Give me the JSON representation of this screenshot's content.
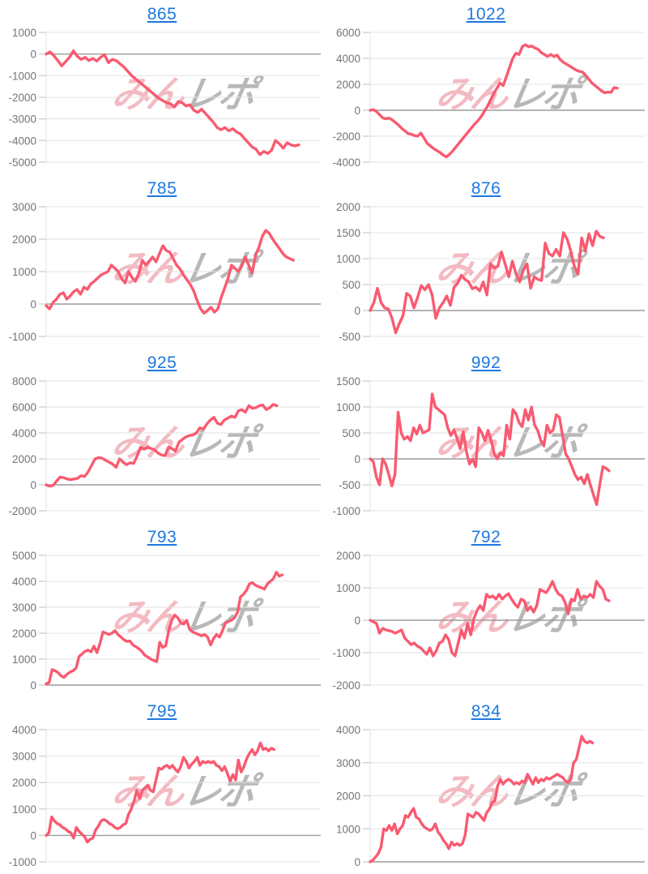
{
  "page": {
    "title": ""
  },
  "watermark": {
    "pink_text": "みん",
    "gray_text": "レポ"
  },
  "colors": {
    "line": "#f95a70",
    "grid": "#e3e3e3",
    "zero_line": "#9b9b9b",
    "tick": "#cfcfcf",
    "axis_label": "#757575",
    "link": "#1e78e0"
  },
  "chart_data": [
    {
      "type": "line",
      "title": "865",
      "ylim": [
        -5000,
        1000
      ],
      "ytick_values": [
        1000,
        0,
        -1000,
        -2000,
        -3000,
        -4000,
        -5000
      ],
      "ytick_labels": [
        "1000",
        "0",
        "-1000",
        "-2000",
        "-3000",
        "-4000",
        "-5000"
      ],
      "end_frac": 0.92,
      "values": [
        0,
        100,
        -80,
        -300,
        -550,
        -350,
        -150,
        150,
        -100,
        -250,
        -150,
        -300,
        -200,
        -320,
        -150,
        -30,
        -400,
        -250,
        -300,
        -450,
        -600,
        -800,
        -1000,
        -1150,
        -1300,
        -1450,
        -1600,
        -1750,
        -1900,
        -2050,
        -2150,
        -2250,
        -2300,
        -2450,
        -2200,
        -2250,
        -2400,
        -2350,
        -2600,
        -2700,
        -2550,
        -2750,
        -2950,
        -3150,
        -3400,
        -3500,
        -3400,
        -3550,
        -3450,
        -3600,
        -3700,
        -3900,
        -4100,
        -4300,
        -4400,
        -4650,
        -4500,
        -4600,
        -4450,
        -4000,
        -4150,
        -4350,
        -4100,
        -4200,
        -4250,
        -4200
      ]
    },
    {
      "type": "line",
      "title": "1022",
      "ylim": [
        -4000,
        6000
      ],
      "ytick_values": [
        6000,
        4000,
        2000,
        0,
        -2000,
        -4000
      ],
      "ytick_labels": [
        "6000",
        "4000",
        "2000",
        "0",
        "-2000",
        "-4000"
      ],
      "end_frac": 0.9,
      "values": [
        0,
        50,
        -100,
        -350,
        -600,
        -650,
        -600,
        -750,
        -950,
        -1150,
        -1400,
        -1600,
        -1800,
        -1850,
        -1950,
        -2000,
        -1750,
        -2150,
        -2550,
        -2750,
        -2950,
        -3100,
        -3250,
        -3450,
        -3600,
        -3400,
        -3150,
        -2850,
        -2550,
        -2250,
        -1950,
        -1650,
        -1350,
        -1050,
        -800,
        -500,
        -100,
        300,
        800,
        1300,
        1700,
        2100,
        1900,
        2600,
        3300,
        4000,
        4400,
        4300,
        4900,
        5050,
        4900,
        4950,
        4800,
        4700,
        4450,
        4300,
        4150,
        4300,
        4150,
        4250,
        3900,
        3700,
        3550,
        3400,
        3250,
        3100,
        3000,
        2950,
        2700,
        2400,
        2100,
        1900,
        1700,
        1500,
        1350,
        1400,
        1380,
        1750,
        1700
      ]
    },
    {
      "type": "line",
      "title": "785",
      "ylim": [
        -1000,
        3000
      ],
      "ytick_values": [
        3000,
        2000,
        1000,
        0,
        -1000
      ],
      "ytick_labels": [
        "3000",
        "2000",
        "1000",
        "0",
        "-1000"
      ],
      "end_frac": 0.9,
      "values": [
        -50,
        -150,
        50,
        150,
        300,
        350,
        150,
        250,
        380,
        450,
        300,
        520,
        450,
        620,
        700,
        800,
        900,
        950,
        1000,
        1200,
        1100,
        1000,
        780,
        650,
        1000,
        820,
        700,
        950,
        1350,
        1200,
        1320,
        1450,
        1300,
        1550,
        1800,
        1650,
        1600,
        1400,
        1200,
        1080,
        900,
        750,
        600,
        400,
        100,
        -150,
        -280,
        -200,
        -100,
        -250,
        -150,
        200,
        500,
        800,
        1200,
        1100,
        1000,
        1200,
        1450,
        1200,
        950,
        1500,
        1750,
        2100,
        2270,
        2180,
        2000,
        1850,
        1700,
        1550,
        1450,
        1400,
        1350
      ]
    },
    {
      "type": "line",
      "title": "876",
      "ylim": [
        -500,
        2000
      ],
      "ytick_values": [
        2000,
        1500,
        1000,
        500,
        0,
        -500
      ],
      "ytick_labels": [
        "2000",
        "1500",
        "1000",
        "500",
        "0",
        "-500"
      ],
      "end_frac": 0.85,
      "values": [
        0,
        150,
        430,
        150,
        50,
        30,
        -150,
        -430,
        -250,
        -100,
        330,
        280,
        50,
        250,
        480,
        400,
        500,
        300,
        -150,
        50,
        150,
        280,
        100,
        450,
        530,
        680,
        600,
        550,
        420,
        450,
        380,
        550,
        300,
        900,
        820,
        850,
        1130,
        900,
        650,
        950,
        700,
        550,
        780,
        900,
        430,
        650,
        600,
        580,
        1300,
        1100,
        1050,
        1180,
        1050,
        1500,
        1380,
        1150,
        850,
        700,
        1400,
        1150,
        1480,
        1250,
        1530,
        1430,
        1400
      ]
    },
    {
      "type": "line",
      "title": "925",
      "ylim": [
        -2000,
        8000
      ],
      "ytick_values": [
        8000,
        6000,
        4000,
        2000,
        0,
        -2000
      ],
      "ytick_labels": [
        "8000",
        "6000",
        "4000",
        "2000",
        "0",
        "-2000"
      ],
      "end_frac": 0.84,
      "values": [
        0,
        -100,
        -50,
        300,
        600,
        550,
        450,
        400,
        450,
        500,
        700,
        650,
        1000,
        1500,
        2000,
        2100,
        2050,
        1900,
        1750,
        1600,
        1350,
        2000,
        1750,
        1550,
        1700,
        1650,
        2200,
        2900,
        2750,
        2900,
        2800,
        2700,
        2450,
        2300,
        2250,
        2900,
        2800,
        2600,
        3300,
        3500,
        3700,
        3800,
        3850,
        4000,
        4400,
        4300,
        4700,
        5000,
        5200,
        4750,
        4650,
        5000,
        5150,
        5300,
        5200,
        5700,
        5800,
        5600,
        6100,
        5900,
        5950,
        6100,
        6150,
        5800,
        5950,
        6200,
        6100
      ]
    },
    {
      "type": "line",
      "title": "992",
      "ylim": [
        -1000,
        1500
      ],
      "ytick_values": [
        1500,
        1000,
        500,
        0,
        -500,
        -1000
      ],
      "ytick_labels": [
        "1500",
        "1000",
        "500",
        "0",
        "-500",
        "-1000"
      ],
      "end_frac": 0.87,
      "values": [
        0,
        -50,
        -350,
        -500,
        0,
        -100,
        -300,
        -520,
        -300,
        900,
        500,
        380,
        430,
        350,
        600,
        480,
        650,
        500,
        530,
        560,
        1250,
        1000,
        950,
        900,
        850,
        600,
        450,
        560,
        400,
        200,
        520,
        150,
        -100,
        0,
        -150,
        600,
        500,
        350,
        550,
        350,
        100,
        0,
        120,
        60,
        650,
        380,
        950,
        870,
        700,
        620,
        950,
        750,
        1000,
        650,
        550,
        350,
        250,
        650,
        500,
        560,
        850,
        800,
        450,
        100,
        0,
        -150,
        -300,
        -400,
        -350,
        -480,
        -300,
        -500,
        -700,
        -880,
        -500,
        -150,
        -180,
        -230
      ]
    },
    {
      "type": "line",
      "title": "793",
      "ylim": [
        0,
        5000
      ],
      "ytick_values": [
        5000,
        4000,
        3000,
        2000,
        1000,
        0
      ],
      "ytick_labels": [
        "5000",
        "4000",
        "3000",
        "2000",
        "1000",
        "0"
      ],
      "end_frac": 0.86,
      "values": [
        50,
        100,
        600,
        550,
        480,
        350,
        300,
        420,
        500,
        560,
        650,
        1100,
        1200,
        1300,
        1350,
        1280,
        1500,
        1250,
        1600,
        2050,
        2000,
        1950,
        2000,
        2100,
        1950,
        1850,
        1750,
        1680,
        1700,
        1550,
        1480,
        1400,
        1300,
        1150,
        1080,
        1000,
        950,
        900,
        1650,
        1450,
        1520,
        2100,
        2500,
        2700,
        2600,
        2400,
        2350,
        2500,
        2150,
        2050,
        2000,
        1950,
        1900,
        1950,
        1850,
        1550,
        1800,
        1950,
        1850,
        2100,
        2400,
        2450,
        2500,
        2600,
        2800,
        3400,
        3500,
        3650,
        3900,
        3950,
        3850,
        3800,
        3750,
        3700,
        3900,
        4000,
        4100,
        4350,
        4200,
        4250
      ]
    },
    {
      "type": "line",
      "title": "792",
      "ylim": [
        -2000,
        2000
      ],
      "ytick_values": [
        2000,
        1000,
        0,
        -1000,
        -2000
      ],
      "ytick_labels": [
        "2000",
        "1000",
        "0",
        "-1000",
        "-2000"
      ],
      "end_frac": 0.87,
      "values": [
        0,
        -50,
        -100,
        -400,
        -250,
        -300,
        -320,
        -350,
        -400,
        -350,
        -300,
        -550,
        -650,
        -750,
        -700,
        -800,
        -850,
        -950,
        -1050,
        -850,
        -1100,
        -950,
        -700,
        -650,
        -450,
        -600,
        -1000,
        -1100,
        -700,
        -300,
        -550,
        -100,
        -450,
        50,
        300,
        450,
        300,
        800,
        700,
        750,
        650,
        800,
        650,
        750,
        820,
        650,
        500,
        400,
        650,
        600,
        300,
        420,
        250,
        450,
        950,
        900,
        850,
        1000,
        1200,
        950,
        800,
        750,
        550,
        200,
        650,
        600,
        950,
        650,
        750,
        700,
        800,
        700,
        1200,
        1050,
        950,
        650,
        600
      ]
    },
    {
      "type": "line",
      "title": "795",
      "ylim": [
        -1000,
        4000
      ],
      "ytick_values": [
        4000,
        3000,
        2000,
        1000,
        0,
        -1000
      ],
      "ytick_labels": [
        "4000",
        "3000",
        "2000",
        "1000",
        "0",
        "-1000"
      ],
      "end_frac": 0.83,
      "values": [
        0,
        100,
        700,
        550,
        450,
        400,
        300,
        250,
        150,
        100,
        -100,
        300,
        150,
        50,
        -50,
        -250,
        -150,
        -100,
        200,
        350,
        550,
        600,
        550,
        450,
        400,
        300,
        250,
        300,
        400,
        450,
        800,
        1000,
        1300,
        1700,
        1400,
        1700,
        1800,
        1900,
        1700,
        1650,
        2100,
        2550,
        2500,
        2600,
        2650,
        2550,
        2650,
        2500,
        2400,
        2600,
        2950,
        2800,
        2550,
        2700,
        2800,
        2950,
        2650,
        2800,
        2750,
        2800,
        2750,
        2800,
        2650,
        2600,
        2450,
        2600,
        2350,
        2050,
        2300,
        2100,
        2850,
        2400,
        2600,
        2900,
        3100,
        3250,
        3050,
        3200,
        3500,
        3250,
        3300,
        3200,
        3300,
        3250
      ]
    },
    {
      "type": "line",
      "title": "834",
      "ylim": [
        0,
        4000
      ],
      "ytick_values": [
        4000,
        3000,
        2000,
        1000,
        0
      ],
      "ytick_labels": [
        "4000",
        "3000",
        "2000",
        "1000",
        "0"
      ],
      "end_frac": 0.81,
      "values": [
        0,
        50,
        150,
        250,
        450,
        1000,
        950,
        1100,
        950,
        1150,
        850,
        1000,
        1100,
        1400,
        1350,
        1500,
        1620,
        1350,
        1300,
        1150,
        1050,
        1000,
        950,
        1000,
        1150,
        900,
        800,
        650,
        550,
        400,
        600,
        500,
        550,
        500,
        550,
        800,
        1450,
        1400,
        1350,
        1500,
        1450,
        1350,
        1250,
        1500,
        1600,
        1800,
        1850,
        2300,
        2500,
        2350,
        2450,
        2500,
        2450,
        2350,
        2400,
        2350,
        2450,
        2400,
        2650,
        2500,
        2350,
        2550,
        2400,
        2500,
        2450,
        2550,
        2500,
        2550,
        2600,
        2650,
        2600,
        2550,
        2450,
        2400,
        2500,
        3000,
        3100,
        3450,
        3800,
        3650,
        3600,
        3650,
        3600
      ]
    }
  ]
}
